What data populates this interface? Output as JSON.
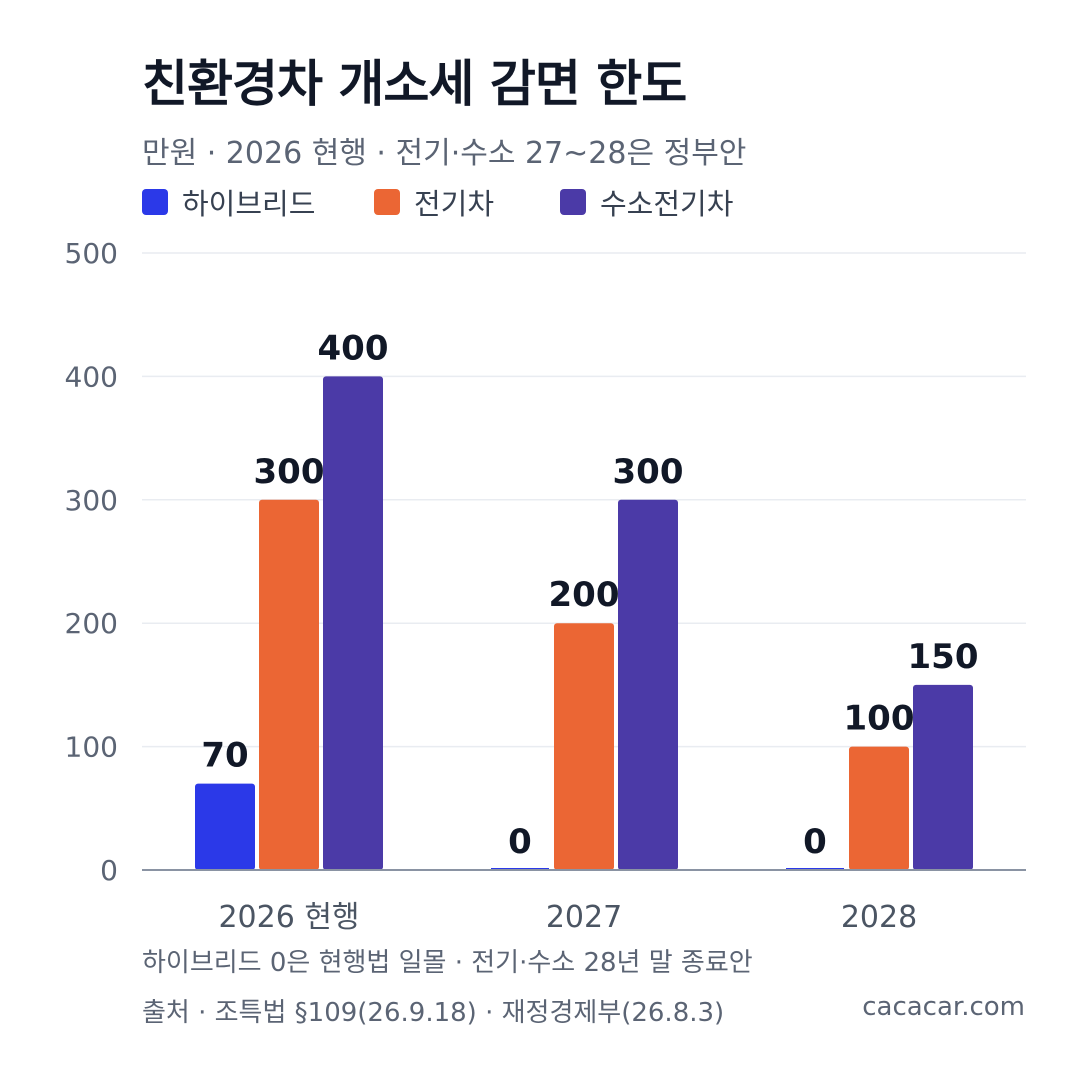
{
  "title": "친환경차 개소세 감면 한도",
  "subtitle": "만원 · 2026 현행 · 전기·수소 27~28은 정부안",
  "colors": {
    "hybrid": "#2b39e8",
    "ev": "#eb6634",
    "fcev": "#4b3aa7",
    "text_dark": "#111827",
    "text_muted": "#5b6474",
    "grid": "#e9ecf1",
    "axis": "#8a93a3"
  },
  "chart_data": {
    "type": "bar",
    "categories": [
      "2026 현행",
      "2027",
      "2028"
    ],
    "series": [
      {
        "name": "하이브리드",
        "values": [
          70,
          0,
          0
        ]
      },
      {
        "name": "전기차",
        "values": [
          300,
          200,
          100
        ]
      },
      {
        "name": "수소전기차",
        "values": [
          400,
          300,
          150
        ]
      }
    ],
    "yticks": [
      "0",
      "100",
      "200",
      "300",
      "400",
      "500"
    ],
    "ylim": [
      0,
      500
    ],
    "grid": true,
    "legend": "top-left",
    "data_labels": true
  },
  "note": "하이브리드 0은 현행법 일몰 · 전기·수소 28년 말 종료안",
  "source": "출처 · 조특법 §109(26.9.18) · 재정경제부(26.8.3)",
  "site": "cacacar.com"
}
